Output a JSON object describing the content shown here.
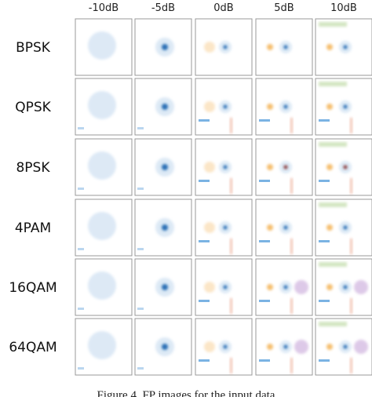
{
  "columns": [
    "-10dB",
    "-5dB",
    "0dB",
    "5dB",
    "10dB"
  ],
  "rows": [
    "BPSK",
    "QPSK",
    "8PSK",
    "4PAM",
    "16QAM",
    "64QAM"
  ],
  "caption": "Figure 4. FP images for the input data"
}
